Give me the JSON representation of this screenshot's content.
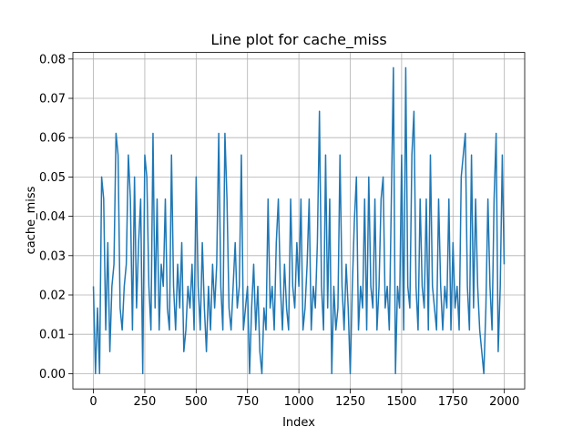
{
  "chart_data": {
    "type": "line",
    "title": "Line plot for cache_miss",
    "x_label": "Index",
    "y_label": "cache_miss",
    "color": "#1f77b4",
    "grid": true,
    "xlim": [
      -99.95,
      2098.95
    ],
    "ylim": [
      -0.00389,
      0.08167
    ],
    "xticks": [
      0,
      250,
      500,
      750,
      1000,
      1250,
      1500,
      1750,
      2000
    ],
    "yticks": [
      {
        "value": 0,
        "label": "0.00"
      },
      0.01,
      0.02,
      0.03,
      0.04,
      0.05,
      0.06,
      0.07,
      0.08
    ],
    "x": [
      0,
      10,
      20,
      30,
      40,
      50,
      60,
      70,
      80,
      90,
      100,
      110,
      120,
      130,
      140,
      150,
      160,
      170,
      180,
      190,
      200,
      210,
      220,
      230,
      240,
      250,
      260,
      270,
      280,
      290,
      300,
      310,
      320,
      330,
      340,
      350,
      360,
      370,
      380,
      390,
      400,
      410,
      420,
      430,
      440,
      450,
      460,
      470,
      480,
      490,
      500,
      510,
      520,
      530,
      540,
      550,
      560,
      570,
      580,
      590,
      600,
      610,
      620,
      630,
      640,
      650,
      660,
      670,
      680,
      690,
      700,
      710,
      720,
      730,
      740,
      750,
      760,
      770,
      780,
      790,
      800,
      810,
      820,
      830,
      840,
      850,
      860,
      870,
      880,
      890,
      900,
      910,
      920,
      930,
      940,
      950,
      960,
      970,
      980,
      990,
      1000,
      1010,
      1020,
      1030,
      1040,
      1050,
      1060,
      1070,
      1080,
      1090,
      1100,
      1110,
      1120,
      1130,
      1140,
      1150,
      1160,
      1170,
      1180,
      1190,
      1200,
      1210,
      1220,
      1230,
      1240,
      1250,
      1260,
      1270,
      1280,
      1290,
      1300,
      1310,
      1320,
      1330,
      1340,
      1350,
      1360,
      1370,
      1380,
      1390,
      1400,
      1410,
      1420,
      1430,
      1440,
      1450,
      1460,
      1470,
      1480,
      1490,
      1500,
      1510,
      1520,
      1530,
      1540,
      1550,
      1560,
      1570,
      1580,
      1590,
      1600,
      1610,
      1620,
      1630,
      1640,
      1650,
      1660,
      1670,
      1680,
      1690,
      1700,
      1710,
      1720,
      1730,
      1740,
      1750,
      1760,
      1770,
      1780,
      1790,
      1800,
      1810,
      1820,
      1830,
      1840,
      1850,
      1860,
      1870,
      1880,
      1890,
      1900,
      1910,
      1920,
      1930,
      1940,
      1950,
      1960,
      1970,
      1980,
      1990,
      1999
    ],
    "values": [
      0.0222,
      0,
      0.0167,
      0,
      0.05,
      0.0444,
      0.0111,
      0.0333,
      0.0056,
      0.0222,
      0.0278,
      0.0611,
      0.0556,
      0.0167,
      0.0111,
      0.0222,
      0.0278,
      0.0556,
      0.0444,
      0.0111,
      0.05,
      0.0167,
      0.0333,
      0.0444,
      0,
      0.0556,
      0.05,
      0.0222,
      0.0111,
      0.0611,
      0.0167,
      0.0444,
      0.0111,
      0.0278,
      0.0222,
      0.0444,
      0.0167,
      0.0111,
      0.0556,
      0.0222,
      0.0111,
      0.0278,
      0.0167,
      0.0333,
      0.0056,
      0.0111,
      0.0222,
      0.0167,
      0.0278,
      0.0111,
      0.05,
      0.0222,
      0.0111,
      0.0333,
      0.0167,
      0.0056,
      0.0222,
      0.0111,
      0.0278,
      0.0167,
      0.0278,
      0.0611,
      0.0222,
      0.0111,
      0.0611,
      0.0444,
      0.0167,
      0.0111,
      0.0222,
      0.0333,
      0.0167,
      0.0222,
      0.0556,
      0.0111,
      0.0167,
      0.0222,
      0,
      0.0167,
      0.0278,
      0.0111,
      0.0222,
      0.0056,
      0,
      0.0167,
      0.0111,
      0.0444,
      0.0167,
      0.0222,
      0.0111,
      0.0333,
      0.0444,
      0.0222,
      0.0111,
      0.0278,
      0.0167,
      0.0111,
      0.0444,
      0.0222,
      0.0167,
      0.0333,
      0.0222,
      0.0444,
      0.0111,
      0.0167,
      0.0278,
      0.0444,
      0.0111,
      0.0222,
      0.0167,
      0.0333,
      0.0667,
      0.0222,
      0.0111,
      0.0556,
      0.0167,
      0.0444,
      0,
      0.0222,
      0.0111,
      0.0167,
      0.0556,
      0.0222,
      0.0111,
      0.0278,
      0.0167,
      0,
      0.0222,
      0.0389,
      0.05,
      0.0111,
      0.0222,
      0.0167,
      0.0444,
      0.0111,
      0.05,
      0.0222,
      0.0167,
      0.0444,
      0.0111,
      0.0222,
      0.0444,
      0.05,
      0.0167,
      0.0222,
      0.0111,
      0.0444,
      0.0778,
      0,
      0.0222,
      0.0167,
      0.0556,
      0.0111,
      0.0778,
      0.0222,
      0.0167,
      0.0556,
      0.0667,
      0.0222,
      0.0111,
      0.0444,
      0.0222,
      0.0167,
      0.0444,
      0.0111,
      0.0556,
      0.0222,
      0.0167,
      0.0111,
      0.0444,
      0.0222,
      0.0111,
      0.0222,
      0.0167,
      0.0444,
      0.0111,
      0.0333,
      0.0167,
      0.0222,
      0.0111,
      0.05,
      0.0556,
      0.0611,
      0.0222,
      0.0111,
      0.0556,
      0.0167,
      0.0444,
      0.0222,
      0.0111,
      0.0056,
      0,
      0.0167,
      0.0444,
      0.0222,
      0.0111,
      0.0444,
      0.0611,
      0.0056,
      0.0222,
      0.0556,
      0.0278
    ]
  }
}
